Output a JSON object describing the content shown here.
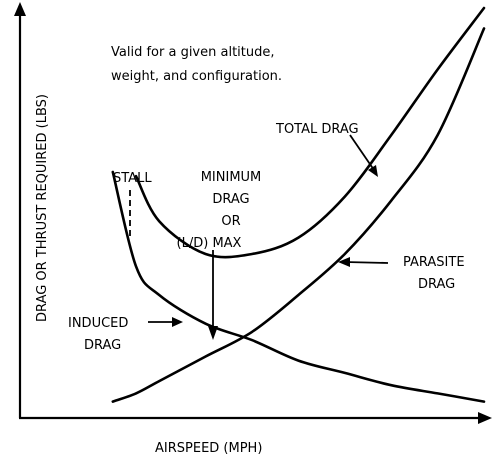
{
  "chart_data": {
    "type": "line",
    "title": "",
    "xlabel": "AIRSPEED (MPH)",
    "ylabel": "DRAG OR THRUST REQUIRED (LBS)",
    "note_lines": [
      "Valid for a given altitude,",
      "weight, and configuration."
    ],
    "x_ticks": [],
    "y_ticks": [],
    "grid": false,
    "x": [
      0.2,
      0.25,
      0.3,
      0.4,
      0.5,
      0.6,
      0.7,
      0.8,
      0.9,
      1.0
    ],
    "series": [
      {
        "name": "TOTAL DRAG",
        "values": [
          null,
          0.59,
          0.48,
          0.4,
          0.4,
          0.44,
          0.54,
          0.69,
          0.85,
          1.0
        ]
      },
      {
        "name": "PARASITE DRAG",
        "values": [
          0.04,
          0.06,
          0.09,
          0.15,
          0.21,
          0.3,
          0.4,
          0.53,
          0.69,
          0.95
        ]
      },
      {
        "name": "INDUCED DRAG",
        "values": [
          0.6,
          0.37,
          0.3,
          0.23,
          0.19,
          0.14,
          0.11,
          0.08,
          0.06,
          0.04
        ]
      }
    ],
    "annotations": {
      "stall": "STALL",
      "minimum_drag": [
        "MINIMUM",
        "DRAG",
        "OR",
        "(L/D) MAX"
      ],
      "total_drag": "TOTAL DRAG",
      "parasite_drag": [
        "PARASITE",
        "DRAG"
      ],
      "induced_drag": [
        "INDUCED",
        "DRAG"
      ]
    }
  }
}
